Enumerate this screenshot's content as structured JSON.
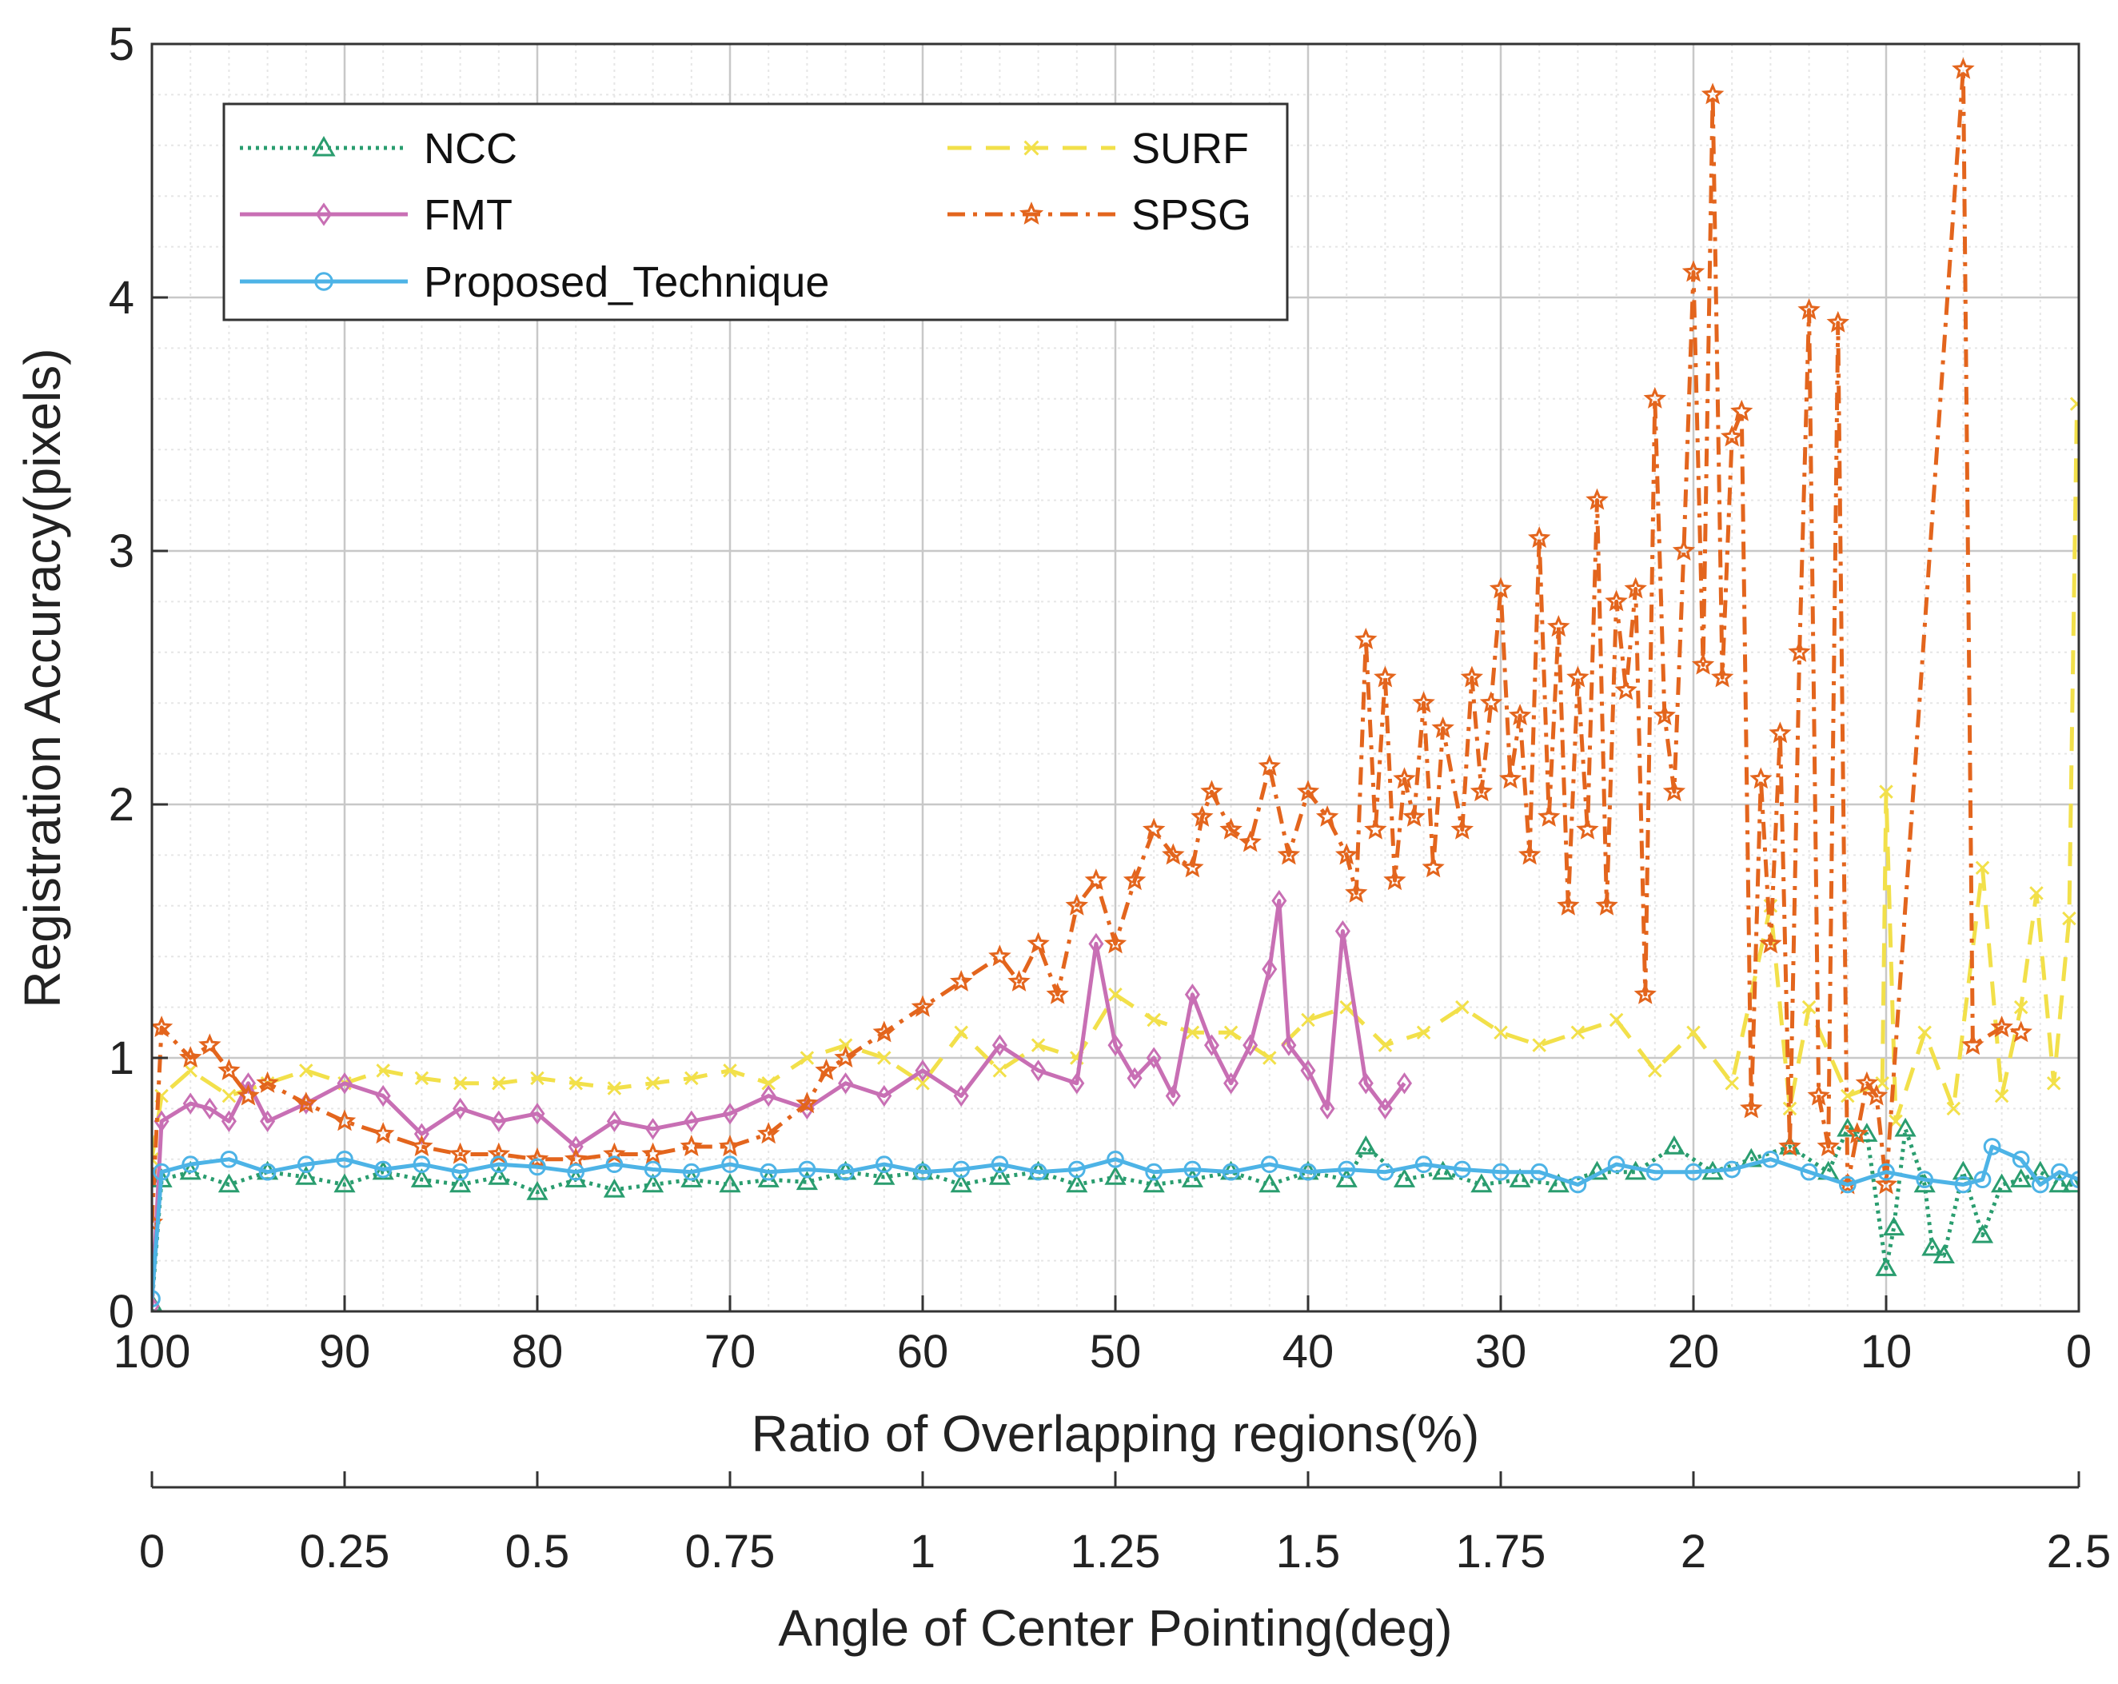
{
  "chart_data": {
    "type": "line",
    "title": "",
    "ylabel": "Registration Accuracy(pixels)",
    "xlabel": "Ratio of Overlapping regions(%)",
    "x2label": "Angle of Center Pointing(deg)",
    "xlim": [
      100,
      0
    ],
    "ylim": [
      0,
      5
    ],
    "xticks": [
      "100",
      "90",
      "80",
      "70",
      "60",
      "50",
      "40",
      "30",
      "20",
      "10",
      "0"
    ],
    "yticks": [
      "0",
      "1",
      "2",
      "3",
      "4",
      "5"
    ],
    "x2ticks": [
      "0",
      "0.25",
      "0.5",
      "0.75",
      "1",
      "1.25",
      "1.5",
      "1.75",
      "2",
      "2.5"
    ],
    "x2tick_values": [
      0,
      0.25,
      0.5,
      0.75,
      1,
      1.25,
      1.5,
      1.75,
      2,
      2.5
    ],
    "grid": true,
    "legend_position": "top-left",
    "series": [
      {
        "name": "NCC",
        "color": "#2a9d6f",
        "style": "dotted",
        "marker": "triangle",
        "x": [
          100,
          99.5,
          98,
          96,
          94,
          92,
          90,
          88,
          86,
          84,
          82,
          80,
          78,
          76,
          74,
          72,
          70,
          68,
          66,
          64,
          62,
          60,
          58,
          56,
          54,
          52,
          50,
          48,
          46,
          44,
          42,
          40,
          38,
          37,
          35,
          33,
          31,
          29,
          27,
          25,
          23,
          21,
          19,
          17,
          15,
          13,
          12,
          11,
          10,
          9.6,
          9,
          8,
          7.6,
          7,
          6,
          5,
          4,
          3,
          2,
          1,
          0.3
        ],
        "values": [
          0.03,
          0.52,
          0.55,
          0.5,
          0.55,
          0.53,
          0.5,
          0.55,
          0.52,
          0.5,
          0.53,
          0.47,
          0.52,
          0.48,
          0.5,
          0.52,
          0.5,
          0.52,
          0.51,
          0.55,
          0.53,
          0.55,
          0.5,
          0.53,
          0.55,
          0.5,
          0.53,
          0.5,
          0.52,
          0.55,
          0.5,
          0.55,
          0.52,
          0.65,
          0.52,
          0.55,
          0.5,
          0.52,
          0.5,
          0.55,
          0.55,
          0.65,
          0.55,
          0.6,
          0.65,
          0.55,
          0.72,
          0.7,
          0.17,
          0.33,
          0.72,
          0.5,
          0.25,
          0.22,
          0.55,
          0.3,
          0.5,
          0.52,
          0.55,
          0.5,
          0.5
        ]
      },
      {
        "name": "FMT",
        "color": "#c86fb4",
        "style": "solid",
        "marker": "diamond",
        "x": [
          100,
          99.5,
          98,
          97,
          96,
          95,
          94,
          92,
          90,
          88,
          86,
          84,
          82,
          80,
          78,
          76,
          74,
          72,
          70,
          68,
          66,
          64,
          62,
          60,
          58,
          56,
          54,
          52,
          51,
          50,
          49,
          48,
          47,
          46,
          45,
          44,
          43,
          42,
          41.5,
          41,
          40,
          39,
          38.2,
          37,
          36,
          35
        ],
        "values": [
          0.02,
          0.75,
          0.82,
          0.8,
          0.75,
          0.9,
          0.75,
          0.82,
          0.9,
          0.85,
          0.7,
          0.8,
          0.75,
          0.78,
          0.65,
          0.75,
          0.72,
          0.75,
          0.78,
          0.85,
          0.8,
          0.9,
          0.85,
          0.95,
          0.85,
          1.05,
          0.95,
          0.9,
          1.45,
          1.05,
          0.92,
          1.0,
          0.85,
          1.25,
          1.05,
          0.9,
          1.05,
          1.35,
          1.62,
          1.05,
          0.95,
          0.8,
          1.5,
          0.9,
          0.8,
          0.9
        ]
      },
      {
        "name": "Proposed_Technique",
        "color": "#4db3e6",
        "style": "solid",
        "marker": "circle",
        "x": [
          100,
          99.5,
          98,
          96,
          94,
          92,
          90,
          88,
          86,
          84,
          82,
          80,
          78,
          76,
          74,
          72,
          70,
          68,
          66,
          64,
          62,
          60,
          58,
          56,
          54,
          52,
          50,
          48,
          46,
          44,
          42,
          40,
          38,
          36,
          34,
          32,
          30,
          28,
          26,
          24,
          22,
          20,
          18,
          16,
          14,
          12,
          10,
          8,
          6,
          5,
          4.5,
          3,
          2,
          1,
          0
        ],
        "values": [
          0.05,
          0.55,
          0.58,
          0.6,
          0.55,
          0.58,
          0.6,
          0.56,
          0.58,
          0.55,
          0.58,
          0.57,
          0.55,
          0.58,
          0.56,
          0.55,
          0.58,
          0.55,
          0.56,
          0.55,
          0.58,
          0.55,
          0.56,
          0.58,
          0.55,
          0.56,
          0.6,
          0.55,
          0.56,
          0.55,
          0.58,
          0.55,
          0.56,
          0.55,
          0.58,
          0.56,
          0.55,
          0.55,
          0.5,
          0.58,
          0.55,
          0.55,
          0.56,
          0.6,
          0.55,
          0.5,
          0.55,
          0.52,
          0.5,
          0.52,
          0.65,
          0.6,
          0.5,
          0.55,
          0.52
        ]
      },
      {
        "name": "SURF",
        "color": "#f2e04a",
        "style": "dashed",
        "marker": "x",
        "x": [
          100,
          99.5,
          98,
          96,
          94,
          92,
          90,
          88,
          86,
          84,
          82,
          80,
          78,
          76,
          74,
          72,
          70,
          68,
          66,
          64,
          62,
          60,
          58,
          56,
          54,
          52,
          50,
          48,
          46,
          44,
          42,
          40,
          38,
          36,
          34,
          32,
          30,
          28,
          26,
          24,
          22,
          20,
          18,
          16,
          15,
          14,
          12,
          10.2,
          10,
          9.5,
          8,
          6.5,
          5,
          4,
          3,
          2.2,
          1.3,
          0.5,
          0.1
        ],
        "values": [
          0.6,
          0.85,
          0.95,
          0.85,
          0.9,
          0.95,
          0.9,
          0.95,
          0.92,
          0.9,
          0.9,
          0.92,
          0.9,
          0.88,
          0.9,
          0.92,
          0.95,
          0.9,
          1.0,
          1.05,
          1.0,
          0.9,
          1.1,
          0.95,
          1.05,
          1.0,
          1.25,
          1.15,
          1.1,
          1.1,
          1.0,
          1.15,
          1.2,
          1.05,
          1.1,
          1.2,
          1.1,
          1.05,
          1.1,
          1.15,
          0.95,
          1.1,
          0.9,
          1.6,
          0.8,
          1.2,
          0.85,
          0.9,
          2.05,
          0.75,
          1.1,
          0.8,
          1.75,
          0.85,
          1.2,
          1.65,
          0.9,
          1.55,
          3.58
        ]
      },
      {
        "name": "SPSG",
        "color": "#e3651d",
        "style": "dashdot",
        "marker": "star",
        "x": [
          100,
          99.5,
          98,
          97,
          96,
          95,
          94,
          92,
          90,
          88,
          86,
          84,
          82,
          80,
          78,
          76,
          74,
          72,
          70,
          68,
          66,
          65,
          64,
          62,
          60,
          58,
          56,
          55,
          54,
          53,
          52,
          51,
          50,
          49,
          48,
          47,
          46,
          45.5,
          45,
          44,
          43,
          42,
          41,
          40,
          39,
          38,
          37.5,
          37,
          36.5,
          36,
          35.5,
          35,
          34.5,
          34,
          33.5,
          33,
          32,
          31.5,
          31,
          30.5,
          30,
          29.5,
          29,
          28.5,
          28,
          27.5,
          27,
          26.5,
          26,
          25.5,
          25,
          24.5,
          24,
          23.5,
          23,
          22.5,
          22,
          21.5,
          21,
          20.5,
          20,
          19.5,
          19,
          18.5,
          18,
          17.5,
          17,
          16.5,
          16,
          15.5,
          15,
          14.5,
          14,
          13.5,
          13,
          12.5,
          12,
          11.5,
          11,
          10.5,
          10,
          6,
          5.5,
          4,
          3
        ],
        "values": [
          0.35,
          1.12,
          1.0,
          1.05,
          0.95,
          0.85,
          0.9,
          0.82,
          0.75,
          0.7,
          0.65,
          0.62,
          0.62,
          0.6,
          0.6,
          0.62,
          0.62,
          0.65,
          0.65,
          0.7,
          0.82,
          0.95,
          1.0,
          1.1,
          1.2,
          1.3,
          1.4,
          1.3,
          1.45,
          1.25,
          1.6,
          1.7,
          1.45,
          1.7,
          1.9,
          1.8,
          1.75,
          1.95,
          2.05,
          1.9,
          1.85,
          2.15,
          1.8,
          2.05,
          1.95,
          1.8,
          1.65,
          2.65,
          1.9,
          2.5,
          1.7,
          2.1,
          1.95,
          2.4,
          1.75,
          2.3,
          1.9,
          2.5,
          2.05,
          2.4,
          2.85,
          2.1,
          2.35,
          1.8,
          3.05,
          1.95,
          2.7,
          1.6,
          2.5,
          1.9,
          3.2,
          1.6,
          2.8,
          2.45,
          2.85,
          1.25,
          3.6,
          2.35,
          2.05,
          3.0,
          4.1,
          2.55,
          4.8,
          2.5,
          3.45,
          3.55,
          0.8,
          2.1,
          1.45,
          2.28,
          0.65,
          2.6,
          3.95,
          0.85,
          0.65,
          3.9,
          0.5,
          0.7,
          0.9,
          0.85,
          0.5,
          4.9,
          1.05,
          1.12,
          1.1
        ]
      }
    ]
  }
}
